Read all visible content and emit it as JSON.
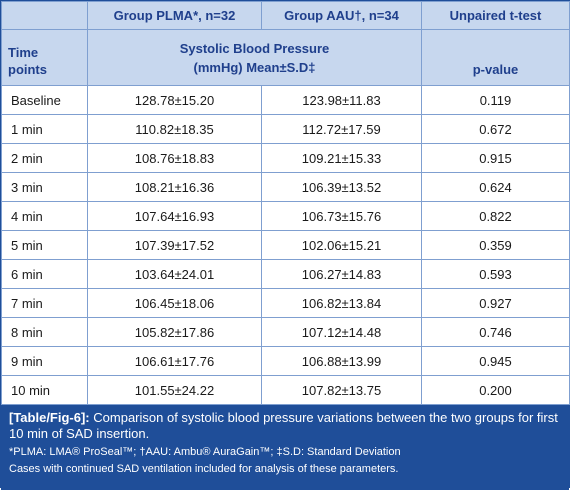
{
  "header": {
    "group_plma": "Group PLMA*, n=32",
    "group_aau": "Group AAU†, n=34",
    "ttest": "Unpaired t-test",
    "time_line1": "Time",
    "time_line2": "points",
    "sbp_line1": "Systolic Blood Pressure",
    "sbp_line2": "(mmHg) Mean±S.D‡",
    "pvalue": "p-value"
  },
  "rows": [
    {
      "time": "Baseline",
      "plma": "128.78±15.20",
      "aau": "123.98±11.83",
      "p": "0.119"
    },
    {
      "time": "1 min",
      "plma": "110.82±18.35",
      "aau": "112.72±17.59",
      "p": "0.672"
    },
    {
      "time": "2 min",
      "plma": "108.76±18.83",
      "aau": "109.21±15.33",
      "p": "0.915"
    },
    {
      "time": "3 min",
      "plma": "108.21±16.36",
      "aau": "106.39±13.52",
      "p": "0.624"
    },
    {
      "time": "4 min",
      "plma": "107.64±16.93",
      "aau": "106.73±15.76",
      "p": "0.822"
    },
    {
      "time": "5 min",
      "plma": "107.39±17.52",
      "aau": "102.06±15.21",
      "p": "0.359"
    },
    {
      "time": "6 min",
      "plma": "103.64±24.01",
      "aau": "106.27±14.83",
      "p": "0.593"
    },
    {
      "time": "7 min",
      "plma": "106.45±18.06",
      "aau": "106.82±13.84",
      "p": "0.927"
    },
    {
      "time": "8 min",
      "plma": "105.82±17.86",
      "aau": "107.12±14.48",
      "p": "0.746"
    },
    {
      "time": "9 min",
      "plma": "106.61±17.76",
      "aau": "106.88±13.99",
      "p": "0.945"
    },
    {
      "time": "10 min",
      "plma": "101.55±24.22",
      "aau": "107.82±13.75",
      "p": "0.200"
    }
  ],
  "caption": {
    "tag": "[Table/Fig-6]:",
    "text": "Comparison of systolic blood pressure variations between the two groups for first 10 min of SAD insertion.",
    "footnote": "*PLMA: LMA® ProSeal™; †AAU: Ambu® AuraGain™; ‡S.D: Standard Deviation",
    "note": "Cases with continued SAD ventilation included for analysis of these parameters."
  },
  "colors": {
    "header_bg": "#c7d7ee",
    "header_text": "#1f3f8c",
    "caption_bg": "#1f4e99",
    "border": "#7f9fd0"
  }
}
